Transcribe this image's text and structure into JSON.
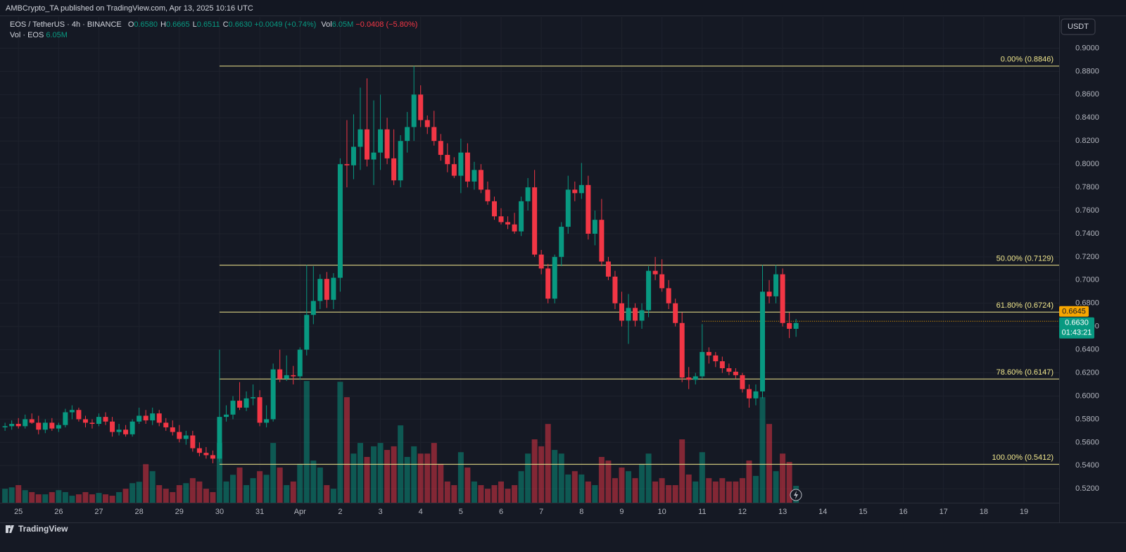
{
  "header": {
    "publisher": "AMBCrypto_TA published on TradingView.com, Apr 13, 2025 10:16 UTC"
  },
  "chart_data": {
    "type": "candlestick",
    "legend": {
      "symbol": "EOS / TetherUS · 4h · BINANCE",
      "fields": [
        {
          "key": "O",
          "value": "0.6580"
        },
        {
          "key": "H",
          "value": "0.6665"
        },
        {
          "key": "L",
          "value": "0.6511"
        },
        {
          "key": "C",
          "value": "0.6630"
        }
      ],
      "change": "+0.0049 (+0.74%)",
      "vol_key": "Vol",
      "vol_value": "6.05M",
      "vol_change": "−0.0408 (−5.80%)",
      "vol_row_key": "Vol · EOS",
      "vol_row_value": "6.05M"
    },
    "currency": "USDT",
    "x": [
      -8,
      -4,
      0,
      4,
      8,
      12,
      16,
      20,
      24,
      28,
      32,
      36,
      40,
      44,
      48,
      52,
      56,
      60,
      64,
      68,
      72,
      76,
      80,
      84,
      88,
      92,
      96,
      100,
      104,
      108,
      112,
      116,
      120,
      124,
      128,
      132,
      136,
      140,
      144,
      148,
      152,
      156,
      160,
      164,
      168,
      172,
      176,
      180,
      184,
      188,
      192,
      196,
      200,
      204,
      208,
      212,
      216,
      220,
      224,
      228,
      232,
      236,
      240,
      244,
      248,
      252,
      256,
      260,
      264,
      268,
      272,
      276,
      280,
      284,
      288,
      292,
      296,
      300,
      304,
      308,
      312,
      316,
      320,
      324,
      328,
      332,
      336,
      340,
      344,
      348,
      352,
      356,
      360,
      364,
      368,
      372,
      376,
      380,
      384,
      388,
      392,
      396,
      400,
      404,
      408,
      412,
      416,
      420,
      424,
      428,
      432,
      436,
      440,
      444,
      448,
      452,
      456,
      460,
      464
    ],
    "open": [
      0.573,
      0.574,
      0.576,
      0.574,
      0.58,
      0.577,
      0.571,
      0.577,
      0.572,
      0.575,
      0.586,
      0.588,
      0.58,
      0.577,
      0.576,
      0.582,
      0.578,
      0.569,
      0.571,
      0.567,
      0.578,
      0.583,
      0.579,
      0.585,
      0.577,
      0.573,
      0.569,
      0.563,
      0.566,
      0.555,
      0.551,
      0.549,
      0.546,
      0.582,
      0.584,
      0.596,
      0.59,
      0.598,
      0.599,
      0.577,
      0.58,
      0.623,
      0.615,
      0.618,
      0.617,
      0.64,
      0.67,
      0.682,
      0.701,
      0.683,
      0.702,
      0.8,
      0.799,
      0.815,
      0.83,
      0.804,
      0.81,
      0.83,
      0.805,
      0.786,
      0.82,
      0.832,
      0.86,
      0.838,
      0.832,
      0.82,
      0.808,
      0.8,
      0.79,
      0.81,
      0.785,
      0.795,
      0.778,
      0.768,
      0.755,
      0.75,
      0.748,
      0.742,
      0.768,
      0.78,
      0.722,
      0.71,
      0.684,
      0.72,
      0.746,
      0.778,
      0.775,
      0.782,
      0.74,
      0.752,
      0.716,
      0.703,
      0.68,
      0.665,
      0.676,
      0.665,
      0.674,
      0.708,
      0.705,
      0.693,
      0.68,
      0.663,
      0.616,
      0.614,
      0.617,
      0.638,
      0.635,
      0.63,
      0.624,
      0.621,
      0.618,
      0.606,
      0.598,
      0.604,
      0.69,
      0.686,
      0.705,
      0.663,
      0.658
    ],
    "high": [
      0.577,
      0.579,
      0.581,
      0.584,
      0.585,
      0.583,
      0.58,
      0.581,
      0.577,
      0.589,
      0.592,
      0.59,
      0.583,
      0.58,
      0.585,
      0.586,
      0.582,
      0.576,
      0.575,
      0.58,
      0.59,
      0.588,
      0.59,
      0.588,
      0.581,
      0.579,
      0.575,
      0.57,
      0.57,
      0.56,
      0.556,
      0.553,
      0.64,
      0.592,
      0.6,
      0.612,
      0.604,
      0.61,
      0.605,
      0.592,
      0.628,
      0.64,
      0.635,
      0.626,
      0.642,
      0.713,
      0.712,
      0.705,
      0.707,
      0.706,
      0.805,
      0.838,
      0.843,
      0.866,
      0.874,
      0.855,
      0.86,
      0.84,
      0.83,
      0.825,
      0.845,
      0.8846,
      0.868,
      0.842,
      0.846,
      0.826,
      0.818,
      0.806,
      0.822,
      0.818,
      0.802,
      0.8,
      0.785,
      0.772,
      0.762,
      0.755,
      0.758,
      0.772,
      0.788,
      0.795,
      0.726,
      0.714,
      0.722,
      0.75,
      0.79,
      0.785,
      0.801,
      0.79,
      0.76,
      0.77,
      0.72,
      0.708,
      0.69,
      0.688,
      0.68,
      0.68,
      0.712,
      0.72,
      0.718,
      0.7,
      0.684,
      0.672,
      0.625,
      0.62,
      0.662,
      0.642,
      0.638,
      0.634,
      0.628,
      0.624,
      0.62,
      0.61,
      0.61,
      0.713,
      0.7,
      0.713,
      0.71,
      0.672,
      0.6665
    ],
    "low": [
      0.57,
      0.571,
      0.572,
      0.572,
      0.576,
      0.567,
      0.568,
      0.57,
      0.569,
      0.573,
      0.58,
      0.578,
      0.573,
      0.572,
      0.574,
      0.575,
      0.565,
      0.566,
      0.565,
      0.565,
      0.576,
      0.576,
      0.575,
      0.574,
      0.57,
      0.566,
      0.56,
      0.558,
      0.552,
      0.548,
      0.546,
      0.542,
      0.543,
      0.578,
      0.58,
      0.588,
      0.587,
      0.592,
      0.574,
      0.573,
      0.578,
      0.612,
      0.613,
      0.61,
      0.614,
      0.635,
      0.662,
      0.675,
      0.676,
      0.675,
      0.69,
      0.78,
      0.787,
      0.795,
      0.798,
      0.782,
      0.795,
      0.8,
      0.782,
      0.78,
      0.81,
      0.82,
      0.832,
      0.826,
      0.816,
      0.803,
      0.793,
      0.788,
      0.775,
      0.78,
      0.778,
      0.775,
      0.765,
      0.752,
      0.748,
      0.744,
      0.74,
      0.738,
      0.76,
      0.72,
      0.705,
      0.68,
      0.68,
      0.712,
      0.74,
      0.768,
      0.77,
      0.735,
      0.73,
      0.712,
      0.7,
      0.675,
      0.66,
      0.645,
      0.66,
      0.658,
      0.668,
      0.7,
      0.69,
      0.675,
      0.66,
      0.612,
      0.606,
      0.61,
      0.615,
      0.628,
      0.625,
      0.62,
      0.618,
      0.615,
      0.603,
      0.59,
      0.592,
      0.598,
      0.68,
      0.68,
      0.66,
      0.65,
      0.6511
    ],
    "close": [
      0.574,
      0.576,
      0.574,
      0.58,
      0.577,
      0.571,
      0.577,
      0.572,
      0.575,
      0.586,
      0.588,
      0.58,
      0.577,
      0.576,
      0.582,
      0.578,
      0.569,
      0.571,
      0.567,
      0.578,
      0.583,
      0.579,
      0.585,
      0.577,
      0.573,
      0.569,
      0.563,
      0.566,
      0.555,
      0.551,
      0.549,
      0.546,
      0.582,
      0.584,
      0.596,
      0.59,
      0.598,
      0.599,
      0.577,
      0.58,
      0.623,
      0.615,
      0.618,
      0.617,
      0.64,
      0.67,
      0.682,
      0.701,
      0.683,
      0.702,
      0.8,
      0.799,
      0.815,
      0.83,
      0.804,
      0.81,
      0.83,
      0.805,
      0.786,
      0.82,
      0.832,
      0.86,
      0.838,
      0.832,
      0.82,
      0.808,
      0.8,
      0.79,
      0.81,
      0.785,
      0.795,
      0.778,
      0.768,
      0.755,
      0.75,
      0.748,
      0.742,
      0.768,
      0.78,
      0.722,
      0.71,
      0.684,
      0.72,
      0.746,
      0.778,
      0.775,
      0.782,
      0.74,
      0.752,
      0.716,
      0.703,
      0.68,
      0.665,
      0.676,
      0.665,
      0.674,
      0.708,
      0.705,
      0.693,
      0.68,
      0.663,
      0.616,
      0.614,
      0.617,
      0.638,
      0.635,
      0.63,
      0.624,
      0.621,
      0.618,
      0.606,
      0.598,
      0.604,
      0.69,
      0.686,
      0.705,
      0.663,
      0.658,
      0.663
    ],
    "volume": [
      5,
      5.5,
      6.3,
      4.5,
      3.8,
      3,
      3,
      3.8,
      4.5,
      3.8,
      2.5,
      3,
      3.8,
      3,
      3.5,
      3,
      2.5,
      3.8,
      5,
      7,
      7.5,
      13.8,
      11.3,
      6.3,
      5,
      3.8,
      6.3,
      7,
      8.8,
      7.6,
      5,
      3.8,
      21.4,
      7.6,
      10,
      12.6,
      6.3,
      8.8,
      11.3,
      10,
      21.4,
      12.6,
      6.3,
      7.6,
      13.9,
      43.6,
      15.1,
      12.6,
      6.3,
      5,
      43.3,
      37.8,
      17.6,
      21.4,
      16.4,
      20.2,
      21.4,
      18.9,
      20.2,
      27.7,
      16.4,
      20.2,
      17.6,
      17.6,
      21.4,
      13.9,
      7.6,
      6.3,
      18.1,
      12.6,
      7.6,
      6.3,
      5,
      6.3,
      7.6,
      5,
      6.3,
      11.3,
      17.6,
      22.7,
      20.2,
      28.2,
      18.9,
      17.6,
      10.1,
      11.3,
      10.1,
      7.6,
      6.3,
      16.4,
      15.1,
      8.8,
      12.6,
      11.3,
      8.8,
      13.9,
      17.6,
      7.6,
      8.8,
      6.3,
      6.3,
      22.7,
      10.1,
      7.6,
      18.1,
      8.8,
      7.6,
      8.8,
      7.6,
      7.6,
      8.8,
      15.1,
      9.6,
      37.8,
      28.2,
      11.3,
      17.6,
      14.6,
      6.05
    ],
    "xlim": [
      -11,
      621
    ],
    "xticks": [
      {
        "value": 0,
        "label": "25"
      },
      {
        "value": 24,
        "label": "26"
      },
      {
        "value": 48,
        "label": "27"
      },
      {
        "value": 72,
        "label": "28"
      },
      {
        "value": 96,
        "label": "29"
      },
      {
        "value": 120,
        "label": "30"
      },
      {
        "value": 144,
        "label": "31"
      },
      {
        "value": 168,
        "label": "Apr"
      },
      {
        "value": 192,
        "label": "2"
      },
      {
        "value": 216,
        "label": "3"
      },
      {
        "value": 240,
        "label": "4"
      },
      {
        "value": 264,
        "label": "5"
      },
      {
        "value": 288,
        "label": "6"
      },
      {
        "value": 312,
        "label": "7"
      },
      {
        "value": 336,
        "label": "8"
      },
      {
        "value": 360,
        "label": "9"
      },
      {
        "value": 384,
        "label": "10"
      },
      {
        "value": 408,
        "label": "11"
      },
      {
        "value": 432,
        "label": "12"
      },
      {
        "value": 456,
        "label": "13"
      },
      {
        "value": 480,
        "label": "14"
      },
      {
        "value": 504,
        "label": "15"
      },
      {
        "value": 528,
        "label": "16"
      },
      {
        "value": 552,
        "label": "17"
      },
      {
        "value": 576,
        "label": "18"
      },
      {
        "value": 600,
        "label": "19"
      }
    ],
    "ylim": [
      0.508,
      0.927
    ],
    "yticks": [
      {
        "value": 0.52,
        "label": "0.5200"
      },
      {
        "value": 0.54,
        "label": "0.5400"
      },
      {
        "value": 0.56,
        "label": "0.5600"
      },
      {
        "value": 0.58,
        "label": "0.5800"
      },
      {
        "value": 0.6,
        "label": "0.6000"
      },
      {
        "value": 0.62,
        "label": "0.6200"
      },
      {
        "value": 0.64,
        "label": "0.6400"
      },
      {
        "value": 0.66,
        "label": "0.6600"
      },
      {
        "value": 0.68,
        "label": "0.6800"
      },
      {
        "value": 0.7,
        "label": "0.7000"
      },
      {
        "value": 0.72,
        "label": "0.7200"
      },
      {
        "value": 0.74,
        "label": "0.7400"
      },
      {
        "value": 0.76,
        "label": "0.7600"
      },
      {
        "value": 0.78,
        "label": "0.7800"
      },
      {
        "value": 0.8,
        "label": "0.8000"
      },
      {
        "value": 0.82,
        "label": "0.8200"
      },
      {
        "value": 0.84,
        "label": "0.8400"
      },
      {
        "value": 0.86,
        "label": "0.8600"
      },
      {
        "value": 0.88,
        "label": "0.8800"
      },
      {
        "value": 0.9,
        "label": "0.9000"
      }
    ],
    "volume_ylim": [
      0,
      174
    ],
    "grid": true,
    "up_color": "#089981",
    "down_color": "#f23645",
    "fib_start": 120,
    "fib_color": "#f0e68c",
    "fib_levels": [
      {
        "value": 0.8846,
        "label": "0.00% (0.8846)"
      },
      {
        "value": 0.7129,
        "label": "50.00% (0.7129)"
      },
      {
        "value": 0.6724,
        "label": "61.80% (0.6724)"
      },
      {
        "value": 0.6147,
        "label": "78.60% (0.6147)"
      },
      {
        "value": 0.5412,
        "label": "100.00% (0.5412)"
      }
    ],
    "last_price": {
      "value": 0.663,
      "label": "0.6630"
    },
    "countdown": "01:43:21",
    "price_tag": {
      "value": 0.6645,
      "label": "0.6645",
      "color": "#f7a600",
      "start": 408
    }
  },
  "footer": {
    "brand": "TradingView"
  }
}
